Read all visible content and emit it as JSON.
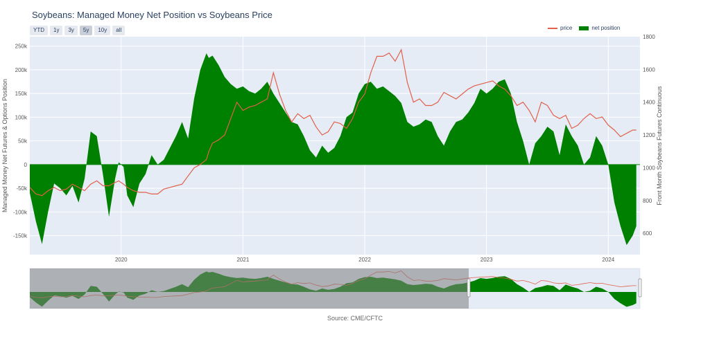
{
  "title": "Soybeans: Managed Money Net Position vs Soybeans Price",
  "range_buttons": [
    {
      "label": "YTD",
      "active": false
    },
    {
      "label": "1y",
      "active": false
    },
    {
      "label": "3y",
      "active": false
    },
    {
      "label": "5y",
      "active": true
    },
    {
      "label": "10y",
      "active": false
    },
    {
      "label": "all",
      "active": false
    }
  ],
  "legend": {
    "price": "price",
    "net": "net position"
  },
  "source": "Source: CME/CFTC",
  "colors": {
    "price": "#e2604a",
    "net": "#008000",
    "plot_bg": "#e5ecf6",
    "selector_shade": "#7f7f7f"
  },
  "chart_data": {
    "type": "area",
    "x_range": [
      2019.25,
      2024.26
    ],
    "x_ticks": [
      "2020",
      "2021",
      "2022",
      "2023",
      "2024"
    ],
    "y_left": {
      "label": "Managed Money Net Futures & Options Position",
      "range": [
        -190000,
        270000
      ],
      "ticks": [
        "250k",
        "200k",
        "150k",
        "100k",
        "50k",
        "0",
        "-50k",
        "-100k",
        "-150k"
      ],
      "tick_values": [
        250000,
        200000,
        150000,
        100000,
        50000,
        0,
        -50000,
        -100000,
        -150000
      ]
    },
    "y_right": {
      "label": "Front Month Soybeans Futures Continuous",
      "range": [
        470,
        1800
      ],
      "ticks": [
        "1800",
        "1600",
        "1400",
        "1200",
        "1000",
        "800",
        "600"
      ],
      "tick_values": [
        1800,
        1600,
        1400,
        1200,
        1000,
        800,
        600
      ]
    },
    "series": [
      {
        "name": "net position",
        "axis": "left",
        "x": [
          2019.25,
          2019.3,
          2019.35,
          2019.4,
          2019.45,
          2019.5,
          2019.55,
          2019.6,
          2019.65,
          2019.7,
          2019.75,
          2019.8,
          2019.85,
          2019.9,
          2019.95,
          2019.98,
          2020.02,
          2020.05,
          2020.1,
          2020.15,
          2020.2,
          2020.25,
          2020.3,
          2020.35,
          2020.4,
          2020.45,
          2020.5,
          2020.55,
          2020.6,
          2020.65,
          2020.7,
          2020.72,
          2020.75,
          2020.8,
          2020.85,
          2020.9,
          2020.95,
          2021.0,
          2021.05,
          2021.1,
          2021.15,
          2021.2,
          2021.25,
          2021.3,
          2021.35,
          2021.4,
          2021.45,
          2021.5,
          2021.55,
          2021.6,
          2021.65,
          2021.7,
          2021.75,
          2021.8,
          2021.85,
          2021.9,
          2021.95,
          2022.0,
          2022.05,
          2022.1,
          2022.15,
          2022.2,
          2022.25,
          2022.3,
          2022.35,
          2022.4,
          2022.45,
          2022.5,
          2022.55,
          2022.6,
          2022.65,
          2022.7,
          2022.75,
          2022.8,
          2022.85,
          2022.9,
          2022.95,
          2023.0,
          2023.05,
          2023.1,
          2023.15,
          2023.2,
          2023.25,
          2023.3,
          2023.35,
          2023.4,
          2023.45,
          2023.5,
          2023.55,
          2023.6,
          2023.65,
          2023.7,
          2023.75,
          2023.8,
          2023.85,
          2023.9,
          2023.95,
          2024.0,
          2024.05,
          2024.1,
          2024.15,
          2024.2,
          2024.23
        ],
        "y": [
          -60000,
          -120000,
          -168000,
          -100000,
          -40000,
          -50000,
          -65000,
          -45000,
          -80000,
          -30000,
          70000,
          60000,
          -20000,
          -110000,
          -30000,
          5000,
          -5000,
          -65000,
          -90000,
          -40000,
          -20000,
          20000,
          0,
          10000,
          35000,
          60000,
          90000,
          55000,
          140000,
          200000,
          235000,
          225000,
          230000,
          210000,
          185000,
          170000,
          160000,
          165000,
          155000,
          150000,
          160000,
          175000,
          150000,
          130000,
          110000,
          90000,
          85000,
          60000,
          30000,
          15000,
          40000,
          25000,
          35000,
          60000,
          100000,
          110000,
          150000,
          170000,
          175000,
          160000,
          165000,
          155000,
          145000,
          130000,
          90000,
          80000,
          85000,
          95000,
          90000,
          60000,
          40000,
          70000,
          90000,
          95000,
          110000,
          130000,
          160000,
          150000,
          160000,
          175000,
          180000,
          150000,
          90000,
          50000,
          0,
          45000,
          60000,
          80000,
          70000,
          20000,
          85000,
          60000,
          40000,
          0,
          15000,
          60000,
          40000,
          0,
          -80000,
          -130000,
          -170000,
          -150000,
          -130000
        ]
      },
      {
        "name": "price",
        "axis": "right",
        "x": [
          2019.25,
          2019.3,
          2019.35,
          2019.4,
          2019.45,
          2019.5,
          2019.55,
          2019.6,
          2019.65,
          2019.7,
          2019.75,
          2019.8,
          2019.85,
          2019.9,
          2019.95,
          2019.98,
          2020.02,
          2020.05,
          2020.1,
          2020.15,
          2020.2,
          2020.25,
          2020.3,
          2020.35,
          2020.4,
          2020.45,
          2020.5,
          2020.55,
          2020.6,
          2020.65,
          2020.7,
          2020.72,
          2020.75,
          2020.8,
          2020.85,
          2020.9,
          2020.95,
          2021.0,
          2021.05,
          2021.1,
          2021.15,
          2021.2,
          2021.25,
          2021.3,
          2021.35,
          2021.4,
          2021.45,
          2021.5,
          2021.55,
          2021.6,
          2021.65,
          2021.7,
          2021.75,
          2021.8,
          2021.85,
          2021.9,
          2021.95,
          2022.0,
          2022.05,
          2022.1,
          2022.15,
          2022.2,
          2022.25,
          2022.3,
          2022.35,
          2022.4,
          2022.45,
          2022.5,
          2022.55,
          2022.6,
          2022.65,
          2022.7,
          2022.75,
          2022.8,
          2022.85,
          2022.9,
          2022.95,
          2023.0,
          2023.05,
          2023.1,
          2023.15,
          2023.2,
          2023.25,
          2023.3,
          2023.35,
          2023.4,
          2023.45,
          2023.5,
          2023.55,
          2023.6,
          2023.65,
          2023.7,
          2023.75,
          2023.8,
          2023.85,
          2023.9,
          2023.95,
          2024.0,
          2024.05,
          2024.1,
          2024.15,
          2024.2,
          2024.23
        ],
        "y": [
          880,
          840,
          830,
          860,
          880,
          860,
          870,
          900,
          880,
          860,
          900,
          920,
          890,
          890,
          910,
          920,
          900,
          880,
          860,
          850,
          850,
          840,
          840,
          870,
          880,
          890,
          900,
          950,
          1000,
          1020,
          1050,
          1100,
          1150,
          1170,
          1200,
          1300,
          1400,
          1350,
          1370,
          1380,
          1400,
          1420,
          1580,
          1450,
          1350,
          1280,
          1330,
          1300,
          1320,
          1250,
          1200,
          1220,
          1280,
          1270,
          1240,
          1300,
          1400,
          1450,
          1580,
          1680,
          1680,
          1700,
          1650,
          1720,
          1520,
          1400,
          1420,
          1380,
          1380,
          1400,
          1460,
          1440,
          1420,
          1450,
          1480,
          1500,
          1510,
          1520,
          1530,
          1500,
          1480,
          1440,
          1380,
          1400,
          1350,
          1280,
          1400,
          1380,
          1320,
          1300,
          1320,
          1240,
          1260,
          1300,
          1330,
          1300,
          1310,
          1260,
          1230,
          1190,
          1210,
          1230,
          1230
        ]
      }
    ]
  }
}
